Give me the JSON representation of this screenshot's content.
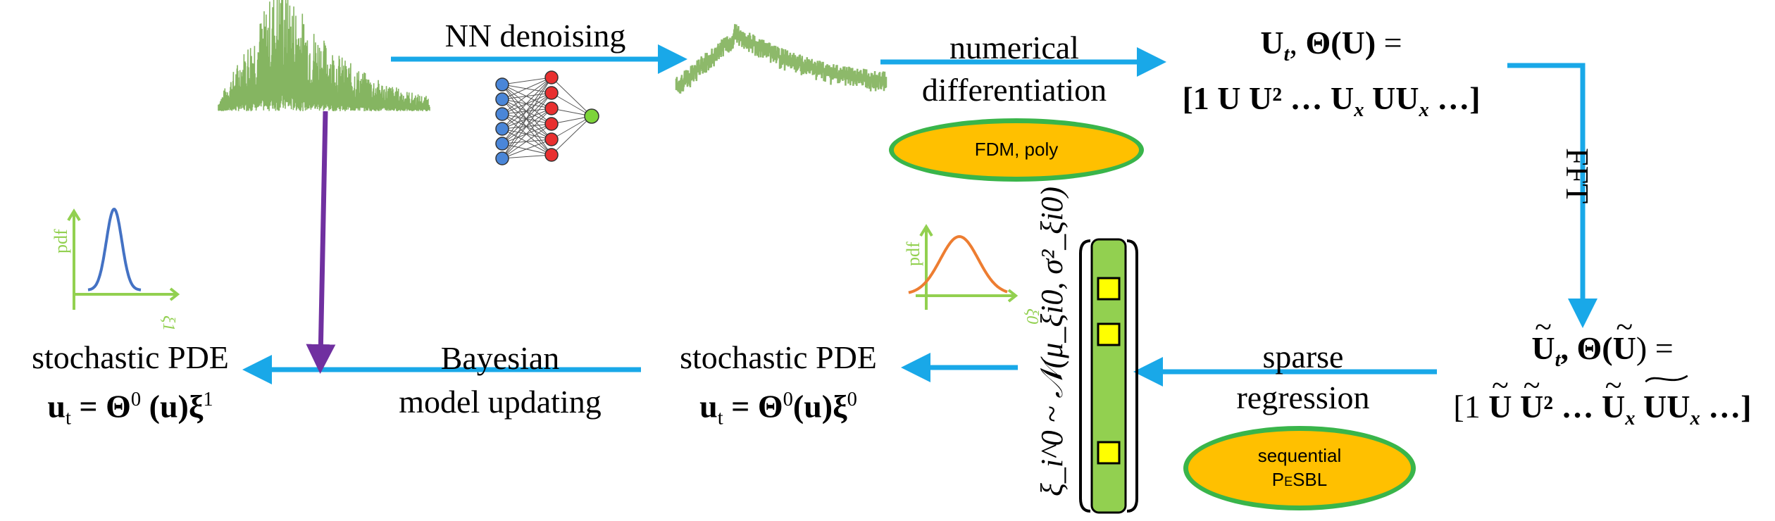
{
  "steps": {
    "nn_denoising": "NN denoising",
    "numerical_differentiation": [
      "numerical",
      "differentiation"
    ],
    "fft": "FFT",
    "sparse_regression": [
      "sparse",
      "regression"
    ],
    "bayesian_model_updating": [
      "Bayesian",
      "model updating"
    ]
  },
  "ovals": {
    "fdm_poly": "FDM, poly",
    "sequential_pesbl": [
      "sequential",
      "PeSBL"
    ]
  },
  "equations": {
    "library_top": {
      "line1_a": "U",
      "line1_b": "t",
      "line1_c": ", ",
      "line1_d": "Θ(U)",
      "line1_e": " =",
      "line2": "[1  U  U² …  U",
      "line2_sub": "x",
      "line2_tail_a": "  UU",
      "line2_tail_b": "x",
      "line2_end": " …]"
    },
    "library_bottom": {
      "line1": "U",
      "line1_sub": "t",
      "line1_rest": ", Θ(",
      "line1_u": "U",
      "line1_end": ") =",
      "line2_open": "[1 ",
      "u1": "U",
      "u2": "U",
      "sq": "²",
      "dots": " … ",
      "u3": "U",
      "x_sub": "x",
      "u4": "UU",
      "x_sub2": "x",
      "end": " …]"
    },
    "spde_initial": {
      "title": "stochastic PDE",
      "lhs": "u",
      "lhs_sub": "t",
      "rhs_a": " = Θ",
      "sup_a": "0",
      "rhs_b": "(u)ξ",
      "sup_b": "0"
    },
    "spde_final": {
      "title": "stochastic PDE",
      "lhs": "u",
      "lhs_sub": "t",
      "rhs_a": " = Θ",
      "sup_a": "0",
      "rhs_b": " (u)ξ",
      "sup_b": "1"
    },
    "prior": "ξ_i^0 ~ 𝒩(μ_ξi0, σ²_ξi0)"
  },
  "pdf_plots": {
    "left": {
      "ylabel": "pdf",
      "xlabel": "ξ1",
      "curve_color": "#4472c4"
    },
    "mid": {
      "ylabel": "pdf",
      "xlabel": "ξ0",
      "curve_color": "#ed7d31"
    }
  },
  "colors": {
    "arrow": "#19a8e8",
    "arrow_purple": "#7030a0",
    "signal": "#70a845",
    "axis": "#92d050",
    "oval_fill": "#ffc000",
    "oval_border": "#39b54a",
    "vector_fill": "#92d050",
    "coef_fill": "#ffff00"
  }
}
